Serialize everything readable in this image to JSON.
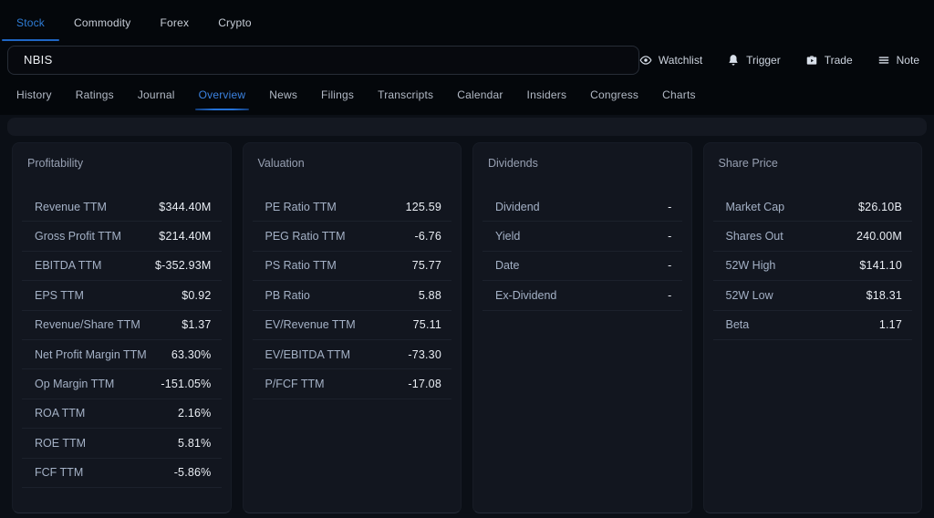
{
  "market_tabs": [
    {
      "label": "Stock",
      "active": true
    },
    {
      "label": "Commodity",
      "active": false
    },
    {
      "label": "Forex",
      "active": false
    },
    {
      "label": "Crypto",
      "active": false
    }
  ],
  "search": {
    "value": "NBIS"
  },
  "actions": [
    {
      "label": "Watchlist",
      "icon": "eye-icon"
    },
    {
      "label": "Trigger",
      "icon": "bell-icon"
    },
    {
      "label": "Trade",
      "icon": "briefcase-icon"
    },
    {
      "label": "Note",
      "icon": "lines-icon"
    }
  ],
  "nav_tabs": [
    {
      "label": "History",
      "active": false
    },
    {
      "label": "Ratings",
      "active": false
    },
    {
      "label": "Journal",
      "active": false
    },
    {
      "label": "Overview",
      "active": true
    },
    {
      "label": "News",
      "active": false
    },
    {
      "label": "Filings",
      "active": false
    },
    {
      "label": "Transcripts",
      "active": false
    },
    {
      "label": "Calendar",
      "active": false
    },
    {
      "label": "Insiders",
      "active": false
    },
    {
      "label": "Congress",
      "active": false
    },
    {
      "label": "Charts",
      "active": false
    }
  ],
  "panels": [
    {
      "title": "Profitability",
      "rows": [
        {
          "label": "Revenue TTM",
          "value": "$344.40M"
        },
        {
          "label": "Gross Profit TTM",
          "value": "$214.40M"
        },
        {
          "label": "EBITDA TTM",
          "value": "$-352.93M"
        },
        {
          "label": "EPS TTM",
          "value": "$0.92"
        },
        {
          "label": "Revenue/Share TTM",
          "value": "$1.37"
        },
        {
          "label": "Net Profit Margin TTM",
          "value": "63.30%"
        },
        {
          "label": "Op Margin TTM",
          "value": "-151.05%"
        },
        {
          "label": "ROA TTM",
          "value": "2.16%"
        },
        {
          "label": "ROE TTM",
          "value": "5.81%"
        },
        {
          "label": "FCF TTM",
          "value": "-5.86%"
        }
      ]
    },
    {
      "title": "Valuation",
      "rows": [
        {
          "label": "PE Ratio TTM",
          "value": "125.59"
        },
        {
          "label": "PEG Ratio TTM",
          "value": "-6.76"
        },
        {
          "label": "PS Ratio TTM",
          "value": "75.77"
        },
        {
          "label": "PB Ratio",
          "value": "5.88"
        },
        {
          "label": "EV/Revenue TTM",
          "value": "75.11"
        },
        {
          "label": "EV/EBITDA TTM",
          "value": "-73.30"
        },
        {
          "label": "P/FCF TTM",
          "value": "-17.08"
        }
      ]
    },
    {
      "title": "Dividends",
      "rows": [
        {
          "label": "Dividend",
          "value": "-"
        },
        {
          "label": "Yield",
          "value": "-"
        },
        {
          "label": "Date",
          "value": "-"
        },
        {
          "label": "Ex-Dividend",
          "value": "-"
        }
      ]
    },
    {
      "title": "Share Price",
      "rows": [
        {
          "label": "Market Cap",
          "value": "$26.10B"
        },
        {
          "label": "Shares Out",
          "value": "240.00M"
        },
        {
          "label": "52W High",
          "value": "$141.10"
        },
        {
          "label": "52W Low",
          "value": "$18.31"
        },
        {
          "label": "Beta",
          "value": "1.17"
        }
      ]
    }
  ],
  "colors": {
    "accent": "#2e7cd6",
    "header_bg": "#04070b",
    "page_bg": "#0b0f16",
    "panel_bg": "#12161f",
    "label_text": "#a4b1c6",
    "value_text": "#e9edf3"
  }
}
